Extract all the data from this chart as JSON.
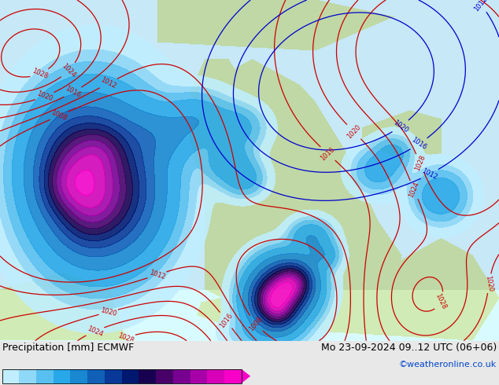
{
  "title_left": "Precipitation [mm] ECMWF",
  "title_right": "Mo 23-09-2024 09..12 UTC (06+06)",
  "credit": "©weatheronline.co.uk",
  "colorbar_levels": [
    0.1,
    0.5,
    1,
    2,
    5,
    10,
    15,
    20,
    25,
    30,
    35,
    40,
    45,
    50
  ],
  "colorbar_colors": [
    "#c0eeff",
    "#90d8f8",
    "#58c0f0",
    "#28a8e8",
    "#1888d0",
    "#1060b8",
    "#083898",
    "#001870",
    "#180050",
    "#480068",
    "#780090",
    "#a800a8",
    "#d800b8",
    "#f800c8"
  ],
  "map_ocean_color": "#c8e8f8",
  "map_land_color": "#c8d8a8",
  "map_bg_light": "#e8f4fc",
  "bottom_bg": "#e8e8e8",
  "font_color_left": "#000000",
  "font_color_right": "#000000",
  "credit_color": "#0044cc",
  "title_fontsize": 9,
  "credit_fontsize": 8,
  "label_fontsize": 6,
  "isobar_red_color": "#cc0000",
  "isobar_blue_color": "#0000cc",
  "isobar_linewidth": 0.9,
  "isobar_fontsize": 6
}
